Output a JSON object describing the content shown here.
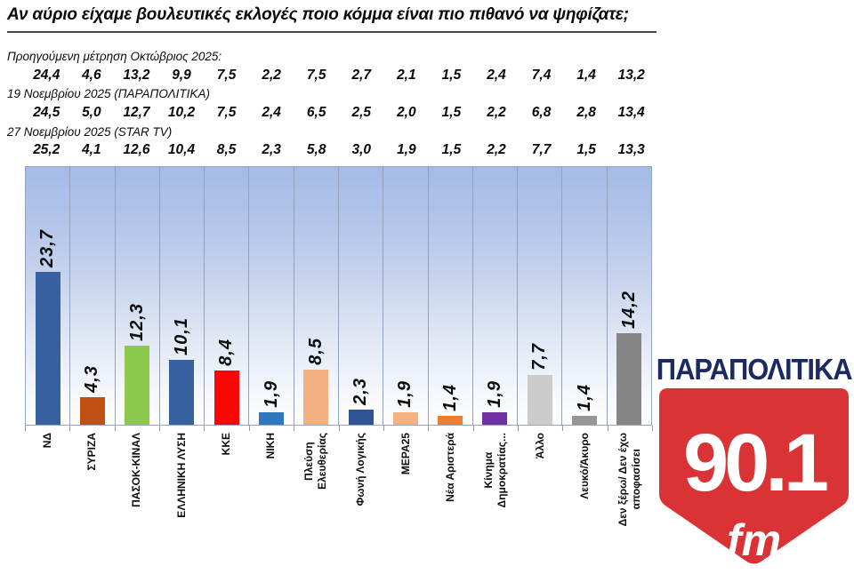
{
  "title": "Αν αύριο είχαμε βουλευτικές εκλογές ποιο κόμμα είναι πιο πιθανό να ψηφίζατε;",
  "history": [
    {
      "label": "Προηγούμενη μέτρηση Οκτώβριος 2025:",
      "values": [
        "24,4",
        "4,6",
        "13,2",
        "9,9",
        "7,5",
        "2,2",
        "7,5",
        "2,7",
        "2,1",
        "1,5",
        "2,4",
        "7,4",
        "1,4",
        "13,2"
      ]
    },
    {
      "label": "19 Νοεμβρίου 2025 (ΠΑΡΑΠΟΛΙΤΙΚΑ)",
      "values": [
        "24,5",
        "5,0",
        "12,7",
        "10,2",
        "7,5",
        "2,4",
        "6,5",
        "2,5",
        "2,0",
        "1,5",
        "2,2",
        "6,8",
        "2,8",
        "13,4"
      ]
    },
    {
      "label": "27 Νοεμβρίου 2025 (STAR TV)",
      "values": [
        "25,2",
        "4,1",
        "12,6",
        "10,4",
        "8,5",
        "2,3",
        "5,8",
        "3,0",
        "1,9",
        "1,5",
        "2,2",
        "7,7",
        "1,5",
        "13,3"
      ]
    }
  ],
  "chart_data": {
    "type": "bar",
    "title": "",
    "xlabel": "",
    "ylabel": "",
    "ylim": [
      0,
      40
    ],
    "grid": "vertical column separators, blue gradient plot background",
    "legend": "none",
    "categories": [
      "ΝΔ",
      "ΣΥΡΙΖΑ",
      "ΠΑΣΟΚ-ΚΙΝΑΛ",
      "ΕΛΛΗΝΙΚΗ ΛΥΣΗ",
      "ΚΚΕ",
      "ΝΙΚΗ",
      "Πλεύση Ελευθερίας",
      "Φωνή Λογικής",
      "ΜΕΡΑ25",
      "Νέα Αριστερά",
      "Κίνημα Δημοκρατίας...",
      "Άλλο",
      "Λευκό/Άκυρο",
      "Δεν ξέρω/ Δεν έχω αποφασίσει"
    ],
    "categories_display": [
      "ΝΔ",
      "ΣΥΡΙΖΑ",
      "ΠΑΣΟΚ-ΚΙΝΑΛ",
      "ΕΛΛΗΝΙΚΗ ΛΥΣΗ",
      "ΚΚΕ",
      "ΝΙΚΗ",
      "Πλεύση\nΕλευθερίας",
      "Φωνή Λογικής",
      "ΜΕΡΑ25",
      "Νέα Αριστερά",
      "Κίνημα\nΔημοκρατίας...",
      "Άλλο",
      "Λευκό/Άκυρο",
      "Δεν ξέρω/ Δεν έχω\nαποφασίσει"
    ],
    "values": [
      23.7,
      4.3,
      12.3,
      10.1,
      8.4,
      1.9,
      8.5,
      2.3,
      1.9,
      1.4,
      1.9,
      7.7,
      1.4,
      14.2
    ],
    "value_labels": [
      "23,7",
      "4,3",
      "12,3",
      "10,1",
      "8,4",
      "1,9",
      "8,5",
      "2,3",
      "1,9",
      "1,4",
      "1,9",
      "7,7",
      "1,4",
      "14,2"
    ],
    "bar_colors": [
      "#36619E",
      "#BF5212",
      "#8DC94C",
      "#36619E",
      "#F80600",
      "#2E79BD",
      "#F3B183",
      "#2F5496",
      "#F4B183",
      "#ED7D31",
      "#7231A2",
      "#CCCCCC",
      "#969696",
      "#868686"
    ]
  },
  "logo": {
    "brand": "ΠΑΡΑΠΟΛΙΤΙΚΑ",
    "frequency": "90.1",
    "band": "fm",
    "brand_color": "#1C2A63",
    "shield_color": "#DA3335"
  }
}
